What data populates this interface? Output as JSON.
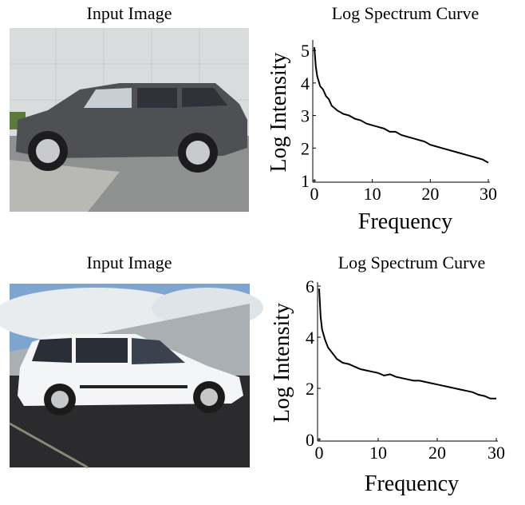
{
  "images": [
    {
      "title": "Input Image"
    },
    {
      "title": "Input Image"
    }
  ],
  "chart_data": [
    {
      "type": "line",
      "title": "Log Spectrum Curve",
      "xlabel": "Frequency",
      "ylabel": "Log Intensity",
      "x": [
        0,
        0.25,
        0.5,
        1,
        1.5,
        2,
        2.5,
        3,
        4,
        5,
        6,
        7,
        8,
        9,
        10,
        11,
        12,
        13,
        14,
        15,
        16,
        17,
        18,
        19,
        20,
        21,
        22,
        23,
        24,
        25,
        26,
        27,
        28,
        29,
        30
      ],
      "values": [
        5.1,
        4.5,
        4.2,
        3.9,
        3.8,
        3.6,
        3.5,
        3.3,
        3.15,
        3.05,
        3.0,
        2.9,
        2.85,
        2.75,
        2.7,
        2.65,
        2.6,
        2.5,
        2.5,
        2.4,
        2.35,
        2.3,
        2.25,
        2.2,
        2.1,
        2.05,
        2.0,
        1.95,
        1.9,
        1.85,
        1.8,
        1.75,
        1.7,
        1.65,
        1.55
      ],
      "color": "#000000",
      "xlim": [
        0,
        30
      ],
      "ylim": [
        1,
        5.2
      ],
      "xticks": [
        0,
        10,
        20,
        30
      ],
      "yticks": [
        1,
        2,
        3,
        4,
        5
      ]
    },
    {
      "type": "line",
      "title": "Log Spectrum Curve",
      "xlabel": "Frequency",
      "ylabel": "Log Intensity",
      "x": [
        0,
        0.25,
        0.5,
        1,
        1.5,
        2,
        2.5,
        3,
        4,
        5,
        6,
        7,
        8,
        9,
        10,
        11,
        12,
        13,
        14,
        15,
        16,
        17,
        18,
        19,
        20,
        21,
        22,
        23,
        24,
        25,
        26,
        27,
        28,
        29,
        30
      ],
      "values": [
        5.9,
        4.8,
        4.3,
        3.9,
        3.6,
        3.45,
        3.3,
        3.15,
        3.0,
        2.95,
        2.85,
        2.75,
        2.7,
        2.65,
        2.6,
        2.5,
        2.55,
        2.45,
        2.4,
        2.35,
        2.3,
        2.3,
        2.25,
        2.2,
        2.15,
        2.1,
        2.05,
        2.0,
        1.95,
        1.9,
        1.85,
        1.75,
        1.7,
        1.6,
        1.6
      ],
      "color": "#000000",
      "xlim": [
        0,
        30
      ],
      "ylim": [
        0,
        6
      ],
      "xticks": [
        0,
        10,
        20,
        30
      ],
      "yticks": [
        0,
        2,
        4,
        6
      ]
    }
  ]
}
